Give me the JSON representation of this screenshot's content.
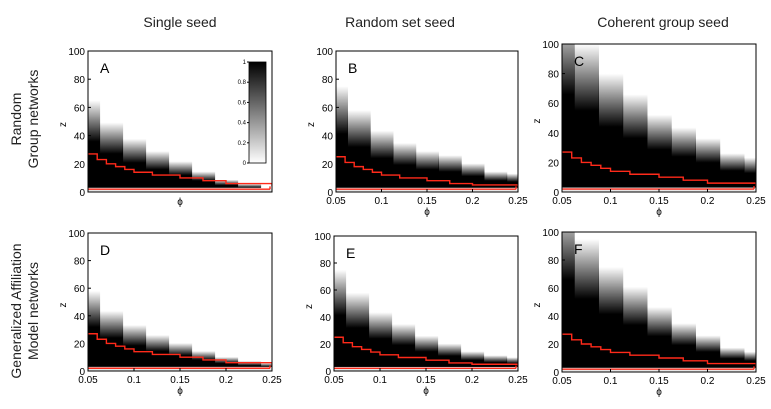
{
  "column_titles": [
    "Single seed",
    "Random set seed",
    "Coherent group seed"
  ],
  "row_titles": [
    [
      "Random",
      "Group networks"
    ],
    [
      "Generalized Affiliation",
      "Model networks"
    ]
  ],
  "colors": {
    "curve": "#ff2a1a",
    "fill": "#000000",
    "frame": "#000000"
  },
  "colorbar": {
    "min": 0,
    "max": 1,
    "ticks": [
      "0",
      "0.2",
      "0.4",
      "0.6",
      "0.8",
      "1"
    ]
  },
  "chart_data": [
    {
      "type": "heatmap",
      "panel": "A",
      "xlabel": "ϕ",
      "ylabel": "z",
      "xlim": [
        0.05,
        0.25
      ],
      "ylim": [
        0,
        100
      ],
      "x_ticks": [],
      "y_ticks": [
        0,
        20,
        40,
        60,
        80,
        100
      ],
      "grid": false,
      "dark_region_upper_z": [
        [
          0.05,
          45
        ],
        [
          0.075,
          34
        ],
        [
          0.1,
          26
        ],
        [
          0.125,
          20
        ],
        [
          0.15,
          15
        ],
        [
          0.175,
          10
        ],
        [
          0.2,
          6
        ],
        [
          0.225,
          4
        ],
        [
          0.25,
          2
        ]
      ],
      "red_boundary": [
        [
          0.05,
          27
        ],
        [
          0.06,
          23
        ],
        [
          0.07,
          20
        ],
        [
          0.08,
          18
        ],
        [
          0.09,
          16
        ],
        [
          0.1,
          14
        ],
        [
          0.12,
          12
        ],
        [
          0.15,
          10
        ],
        [
          0.175,
          8
        ],
        [
          0.2,
          6
        ],
        [
          0.25,
          4
        ]
      ]
    },
    {
      "type": "heatmap",
      "panel": "B",
      "xlabel": "ϕ",
      "ylabel": "z",
      "xlim": [
        0.05,
        0.25
      ],
      "ylim": [
        0,
        100
      ],
      "x_ticks": [
        "0.05",
        "0.1",
        "0.15",
        "0.2",
        "0.25"
      ],
      "y_ticks": [
        0,
        20,
        40,
        60,
        80,
        100
      ],
      "grid": false,
      "dark_region_upper_z": [
        [
          0.05,
          55
        ],
        [
          0.075,
          40
        ],
        [
          0.1,
          30
        ],
        [
          0.125,
          24
        ],
        [
          0.15,
          20
        ],
        [
          0.175,
          18
        ],
        [
          0.2,
          14
        ],
        [
          0.225,
          10
        ],
        [
          0.25,
          9
        ]
      ],
      "red_boundary": [
        [
          0.05,
          25
        ],
        [
          0.06,
          21
        ],
        [
          0.07,
          18
        ],
        [
          0.08,
          16
        ],
        [
          0.09,
          14
        ],
        [
          0.1,
          12
        ],
        [
          0.12,
          10
        ],
        [
          0.15,
          8
        ],
        [
          0.175,
          6
        ],
        [
          0.2,
          5
        ],
        [
          0.25,
          4
        ]
      ]
    },
    {
      "type": "heatmap",
      "panel": "C",
      "xlabel": "ϕ",
      "ylabel": "z",
      "xlim": [
        0.05,
        0.25
      ],
      "ylim": [
        0,
        100
      ],
      "x_ticks": [
        "0.05",
        "0.1",
        "0.15",
        "0.2",
        "0.25"
      ],
      "y_ticks": [
        0,
        20,
        40,
        60,
        80,
        100
      ],
      "grid": false,
      "dark_region_upper_z": [
        [
          0.05,
          100
        ],
        [
          0.075,
          80
        ],
        [
          0.1,
          60
        ],
        [
          0.125,
          46
        ],
        [
          0.15,
          36
        ],
        [
          0.175,
          30
        ],
        [
          0.2,
          25
        ],
        [
          0.225,
          18
        ],
        [
          0.25,
          16
        ]
      ],
      "red_boundary": [
        [
          0.05,
          27
        ],
        [
          0.06,
          23
        ],
        [
          0.07,
          20
        ],
        [
          0.08,
          18
        ],
        [
          0.09,
          16
        ],
        [
          0.1,
          14
        ],
        [
          0.12,
          12
        ],
        [
          0.15,
          10
        ],
        [
          0.175,
          8
        ],
        [
          0.2,
          6
        ],
        [
          0.25,
          4
        ]
      ]
    },
    {
      "type": "heatmap",
      "panel": "D",
      "xlabel": "ϕ",
      "ylabel": "z",
      "xlim": [
        0.05,
        0.25
      ],
      "ylim": [
        0,
        100
      ],
      "x_ticks": [
        "0.05",
        "0.1",
        "0.15",
        "0.2",
        "0.25"
      ],
      "y_ticks": [
        0,
        20,
        40,
        60,
        80,
        100
      ],
      "grid": false,
      "dark_region_upper_z": [
        [
          0.05,
          40
        ],
        [
          0.075,
          30
        ],
        [
          0.1,
          23
        ],
        [
          0.125,
          18
        ],
        [
          0.15,
          14
        ],
        [
          0.175,
          10
        ],
        [
          0.2,
          7
        ],
        [
          0.225,
          5
        ],
        [
          0.25,
          4
        ]
      ],
      "red_boundary": [
        [
          0.05,
          27
        ],
        [
          0.06,
          23
        ],
        [
          0.07,
          20
        ],
        [
          0.08,
          18
        ],
        [
          0.09,
          16
        ],
        [
          0.1,
          14
        ],
        [
          0.12,
          12
        ],
        [
          0.15,
          10
        ],
        [
          0.175,
          8
        ],
        [
          0.2,
          6
        ],
        [
          0.25,
          4
        ]
      ]
    },
    {
      "type": "heatmap",
      "panel": "E",
      "xlabel": "ϕ",
      "ylabel": "z",
      "xlim": [
        0.05,
        0.25
      ],
      "ylim": [
        0,
        100
      ],
      "x_ticks": [
        "0.05",
        "0.1",
        "0.15",
        "0.2",
        "0.25"
      ],
      "y_ticks": [
        0,
        20,
        40,
        60,
        80,
        100
      ],
      "grid": false,
      "dark_region_upper_z": [
        [
          0.05,
          55
        ],
        [
          0.075,
          40
        ],
        [
          0.1,
          30
        ],
        [
          0.125,
          24
        ],
        [
          0.15,
          18
        ],
        [
          0.175,
          14
        ],
        [
          0.2,
          10
        ],
        [
          0.225,
          8
        ],
        [
          0.25,
          7
        ]
      ],
      "red_boundary": [
        [
          0.05,
          25
        ],
        [
          0.06,
          21
        ],
        [
          0.07,
          18
        ],
        [
          0.08,
          16
        ],
        [
          0.09,
          14
        ],
        [
          0.1,
          12
        ],
        [
          0.12,
          10
        ],
        [
          0.15,
          8
        ],
        [
          0.175,
          6
        ],
        [
          0.2,
          5
        ],
        [
          0.25,
          4
        ]
      ]
    },
    {
      "type": "heatmap",
      "panel": "F",
      "xlabel": "ϕ",
      "ylabel": "z",
      "xlim": [
        0.05,
        0.25
      ],
      "ylim": [
        0,
        100
      ],
      "x_ticks": [
        "0.05",
        "0.1",
        "0.15",
        "0.2",
        "0.25"
      ],
      "y_ticks": [
        0,
        20,
        40,
        60,
        80,
        100
      ],
      "grid": false,
      "dark_region_upper_z": [
        [
          0.05,
          100
        ],
        [
          0.075,
          75
        ],
        [
          0.1,
          55
        ],
        [
          0.125,
          42
        ],
        [
          0.15,
          32
        ],
        [
          0.175,
          24
        ],
        [
          0.2,
          18
        ],
        [
          0.225,
          12
        ],
        [
          0.25,
          10
        ]
      ],
      "red_boundary": [
        [
          0.05,
          27
        ],
        [
          0.06,
          23
        ],
        [
          0.07,
          20
        ],
        [
          0.08,
          18
        ],
        [
          0.09,
          16
        ],
        [
          0.1,
          14
        ],
        [
          0.12,
          12
        ],
        [
          0.15,
          10
        ],
        [
          0.175,
          8
        ],
        [
          0.2,
          6
        ],
        [
          0.25,
          4
        ]
      ]
    }
  ]
}
